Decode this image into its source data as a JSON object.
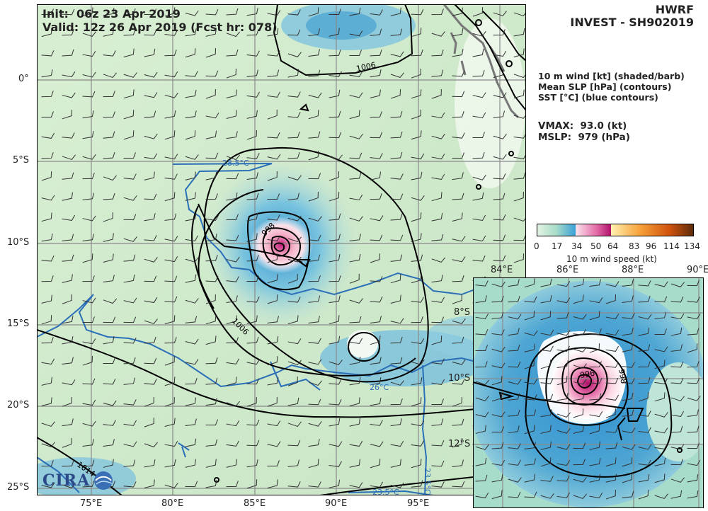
{
  "header": {
    "init": "Init:  06z 23 Apr 2019",
    "valid": "Valid: 12z 26 Apr 2019 (Fcst hr: 078)"
  },
  "title": {
    "model": "HWRF",
    "storm": "INVEST - SH902019"
  },
  "legend": {
    "line1": "10 m wind [kt] (shaded/barb)",
    "line2": "Mean SLP [hPa] (contours)",
    "line3": "SST [°C] (blue contours)"
  },
  "stats": {
    "vmax": "VMAX:  93.0 (kt)",
    "mslp": "MSLP:  979 (hPa)"
  },
  "colorbar": {
    "label": "10 m wind speed (kt)",
    "ticks": [
      "0",
      "17",
      "34",
      "50",
      "64",
      "83",
      "96",
      "114",
      "134"
    ]
  },
  "main_map": {
    "lat_labels": [
      "0°",
      "5°S",
      "10°S",
      "15°S",
      "20°S",
      "25°S"
    ],
    "lon_labels": [
      "75°E",
      "80°E",
      "85°E",
      "90°E",
      "95°E"
    ],
    "contour_labels": [
      "1006",
      "1006",
      "998",
      "1014"
    ],
    "sst_labels": [
      "28.5°C",
      "26°C",
      "23.5°C",
      "23.5°C"
    ]
  },
  "inset_map": {
    "lat_labels": [
      "8°S",
      "10°S",
      "12°S"
    ],
    "lon_labels": [
      "84°E",
      "86°E",
      "88°E",
      "90°E"
    ],
    "contour_labels": [
      "996",
      "998"
    ]
  },
  "logo": {
    "text": "CIRA"
  },
  "colors": {
    "land_green": "#d4eccf",
    "wind_blue": "#4fa8d4",
    "wind_pink": "#f7cfd9",
    "sst_blue": "#2b6fb8",
    "contour": "#000000",
    "grid": "#808080"
  }
}
